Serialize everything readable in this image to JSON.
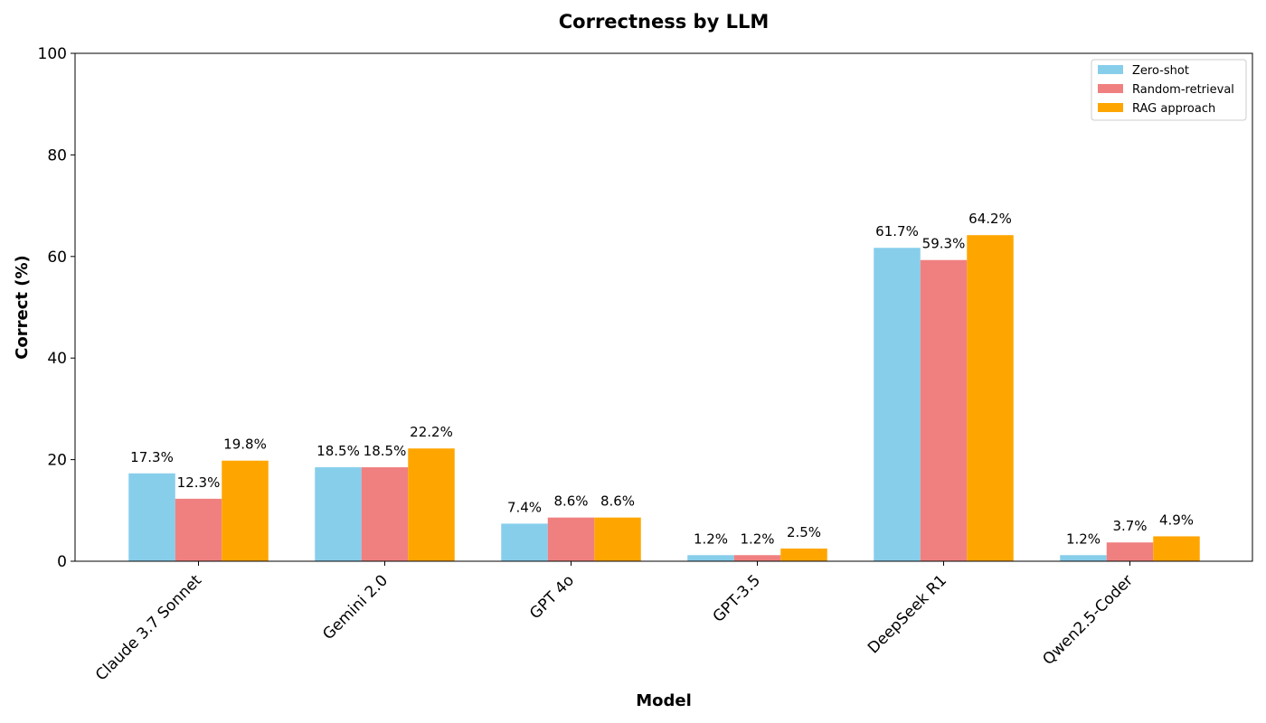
{
  "chart_data": {
    "type": "bar",
    "title": "Correctness by LLM",
    "xlabel": "Model",
    "ylabel": "Correct (%)",
    "ylim": [
      0,
      100
    ],
    "yticks": [
      0,
      20,
      40,
      60,
      80,
      100
    ],
    "grid": false,
    "legend_position": "top-right",
    "categories": [
      "Claude 3.7 Sonnet",
      "Gemini 2.0",
      "GPT 4o",
      "GPT-3.5",
      "DeepSeek R1",
      "Qwen2.5-Coder"
    ],
    "series": [
      {
        "name": "Zero-shot",
        "color": "#87ceeb",
        "values": [
          17.3,
          18.5,
          7.4,
          1.2,
          61.7,
          1.2
        ],
        "labels": [
          "17.3%",
          "18.5%",
          "7.4%",
          "1.2%",
          "61.7%",
          "1.2%"
        ]
      },
      {
        "name": "Random-retrieval",
        "color": "#f08080",
        "values": [
          12.3,
          18.5,
          8.6,
          1.2,
          59.3,
          3.7
        ],
        "labels": [
          "12.3%",
          "18.5%",
          "8.6%",
          "1.2%",
          "59.3%",
          "3.7%"
        ]
      },
      {
        "name": "RAG approach",
        "color": "#ffa500",
        "values": [
          19.8,
          22.2,
          8.6,
          2.5,
          64.2,
          4.9
        ],
        "labels": [
          "19.8%",
          "22.2%",
          "8.6%",
          "2.5%",
          "64.2%",
          "4.9%"
        ]
      }
    ]
  }
}
